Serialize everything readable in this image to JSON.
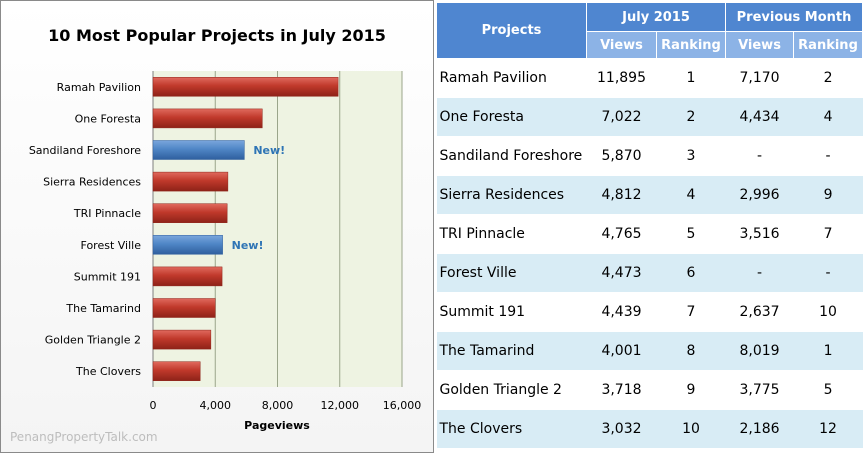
{
  "chart_data": {
    "type": "bar",
    "orientation": "horizontal",
    "title": "10 Most Popular Projects in July 2015",
    "xlabel": "Pageviews",
    "ylabel": "",
    "xlim": [
      0,
      16000
    ],
    "xticks": [
      "0",
      "4,000",
      "8,000",
      "12,000",
      "16,000"
    ],
    "xtick_values": [
      0,
      4000,
      8000,
      12000,
      16000
    ],
    "categories": [
      "Ramah Pavilion",
      "One Foresta",
      "Sandiland Foreshore",
      "Sierra Residences",
      "TRI Pinnacle",
      "Forest Ville",
      "Summit 191",
      "The Tamarind",
      "Golden Triangle 2",
      "The Clovers"
    ],
    "values": [
      11895,
      7022,
      5870,
      4812,
      4765,
      4473,
      4439,
      4001,
      3718,
      3032
    ],
    "new_flags": [
      false,
      false,
      true,
      false,
      false,
      true,
      false,
      false,
      false,
      false
    ],
    "new_label": "New!",
    "grid": "vertical",
    "colors": {
      "default": "#c0392b",
      "new": "#4f86c6",
      "new_label": "#2e74b5",
      "plot_bg": "#eef3e2"
    }
  },
  "watermark": "PenangPropertyTalk.com",
  "table": {
    "header_projects": "Projects",
    "group_current": "July 2015",
    "group_previous": "Previous Month",
    "sub_views": "Views",
    "sub_ranking": "Ranking",
    "rows": [
      {
        "name": "Ramah Pavilion",
        "views": "11,895",
        "rank": "1",
        "prev_views": "7,170",
        "prev_rank": "2"
      },
      {
        "name": "One Foresta",
        "views": "7,022",
        "rank": "2",
        "prev_views": "4,434",
        "prev_rank": "4"
      },
      {
        "name": "Sandiland Foreshore",
        "views": "5,870",
        "rank": "3",
        "prev_views": "-",
        "prev_rank": "-"
      },
      {
        "name": "Sierra Residences",
        "views": "4,812",
        "rank": "4",
        "prev_views": "2,996",
        "prev_rank": "9"
      },
      {
        "name": "TRI Pinnacle",
        "views": "4,765",
        "rank": "5",
        "prev_views": "3,516",
        "prev_rank": "7"
      },
      {
        "name": "Forest Ville",
        "views": "4,473",
        "rank": "6",
        "prev_views": "-",
        "prev_rank": "-"
      },
      {
        "name": "Summit 191",
        "views": "4,439",
        "rank": "7",
        "prev_views": "2,637",
        "prev_rank": "10"
      },
      {
        "name": "The Tamarind",
        "views": "4,001",
        "rank": "8",
        "prev_views": "8,019",
        "prev_rank": "1"
      },
      {
        "name": "Golden Triangle 2",
        "views": "3,718",
        "rank": "9",
        "prev_views": "3,775",
        "prev_rank": "5"
      },
      {
        "name": "The Clovers",
        "views": "3,032",
        "rank": "10",
        "prev_views": "2,186",
        "prev_rank": "12"
      }
    ]
  }
}
